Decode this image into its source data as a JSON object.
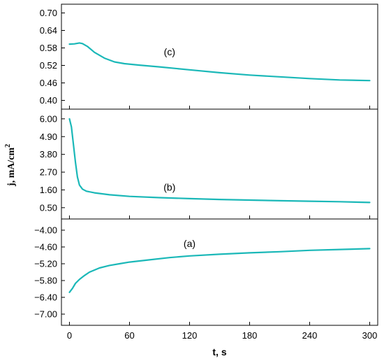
{
  "chart_data": {
    "type": "line",
    "xlabel": "t, s",
    "ylabel_main": "j, mA/cm",
    "ylabel_sup": "2",
    "xlim": [
      -8,
      308
    ],
    "xticks": [
      0,
      60,
      120,
      180,
      240,
      300
    ],
    "xtick_labels": [
      "0",
      "60",
      "120",
      "180",
      "240",
      "300"
    ],
    "grid": false,
    "line_color": "#1bb8b8",
    "panels": [
      {
        "label": "(c)",
        "ylim": [
          0.37,
          0.73
        ],
        "yticks": [
          0.4,
          0.46,
          0.52,
          0.58,
          0.64,
          0.7
        ],
        "ytick_labels": [
          "0.40",
          "0.46",
          "0.52",
          "0.58",
          "0.64",
          "0.70"
        ],
        "annotation_at": [
          100,
          0.555
        ],
        "x": [
          0,
          5,
          10,
          13,
          18,
          25,
          35,
          45,
          55,
          70,
          90,
          120,
          150,
          180,
          210,
          240,
          270,
          300
        ],
        "y": [
          0.593,
          0.594,
          0.597,
          0.595,
          0.585,
          0.565,
          0.545,
          0.532,
          0.526,
          0.521,
          0.515,
          0.505,
          0.495,
          0.487,
          0.481,
          0.475,
          0.47,
          0.468
        ]
      },
      {
        "label": "(b)",
        "ylim": [
          -0.2,
          6.6
        ],
        "yticks": [
          0.5,
          1.6,
          2.7,
          3.8,
          4.9,
          6.0
        ],
        "ytick_labels": [
          "0.50",
          "1.60",
          "2.70",
          "3.80",
          "4.90",
          "6.00"
        ],
        "annotation_at": [
          100,
          1.55
        ],
        "x": [
          0,
          2,
          4,
          6,
          8,
          10,
          13,
          17,
          25,
          40,
          60,
          90,
          120,
          150,
          180,
          210,
          240,
          270,
          300
        ],
        "y": [
          6.0,
          5.5,
          4.4,
          3.3,
          2.4,
          1.9,
          1.65,
          1.52,
          1.42,
          1.3,
          1.2,
          1.12,
          1.06,
          1.01,
          0.97,
          0.93,
          0.9,
          0.87,
          0.82
        ]
      },
      {
        "label": "(a)",
        "ylim": [
          -7.4,
          -3.6
        ],
        "yticks": [
          -7.0,
          -6.4,
          -5.8,
          -5.2,
          -4.6,
          -4.0
        ],
        "ytick_labels": [
          "−7.00",
          "−6.40",
          "−5.80",
          "−5.20",
          "−4.60",
          "−4.00"
        ],
        "annotation_at": [
          120,
          -4.6
        ],
        "x": [
          0,
          3,
          6,
          10,
          15,
          20,
          30,
          40,
          50,
          60,
          80,
          100,
          120,
          150,
          180,
          210,
          240,
          270,
          300
        ],
        "y": [
          -6.22,
          -6.08,
          -5.9,
          -5.76,
          -5.62,
          -5.5,
          -5.35,
          -5.26,
          -5.2,
          -5.14,
          -5.06,
          -4.98,
          -4.92,
          -4.86,
          -4.81,
          -4.77,
          -4.72,
          -4.69,
          -4.66
        ]
      }
    ]
  }
}
